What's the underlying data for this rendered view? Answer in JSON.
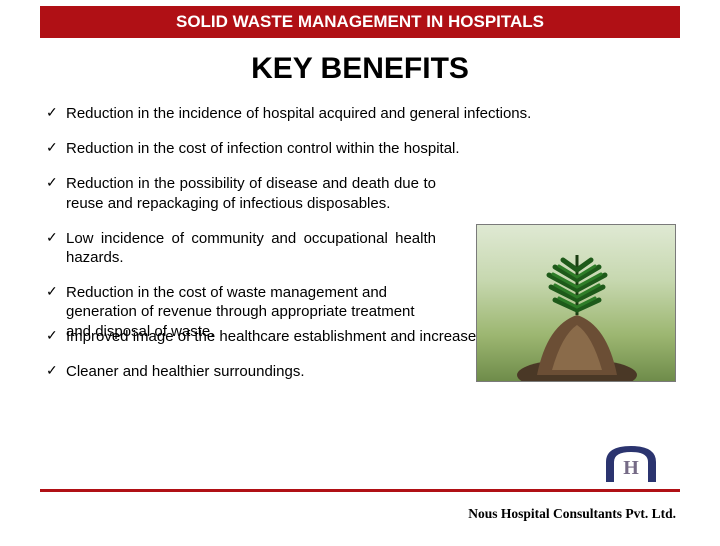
{
  "header": {
    "title": "SOLID WASTE MANAGEMENT IN HOSPITALS"
  },
  "main": {
    "title": "KEY BENEFITS",
    "bullets": [
      {
        "text": "Reduction in the incidence of hospital acquired and general infections.",
        "narrow": false,
        "justify": false
      },
      {
        "text": "Reduction in the cost of infection control within the hospital.",
        "narrow": false,
        "justify": false
      },
      {
        "text": "Reduction in the possibility of disease and death due to reuse and repackaging of infectious disposables.",
        "narrow": true,
        "justify": true
      },
      {
        "text": "Low incidence of community and occupational health hazards.",
        "narrow": true,
        "justify": true
      }
    ],
    "overlap": {
      "first": "Reduction in the cost of waste management and generation of revenue through appropriate treatment and disposal of waste.",
      "second": "Improved image of the healthcare establishment and increase the quality of life."
    },
    "last_bullet": "Cleaner and healthier surroundings."
  },
  "footer": {
    "company": "Nous Hospital Consultants Pvt. Ltd."
  },
  "colors": {
    "header_bg": "#b01015",
    "header_text": "#ffffff",
    "body_text": "#000000",
    "footer_line": "#b01015"
  },
  "check_glyph": "✓",
  "logo": {
    "letter": "H",
    "arch_color": "#2b346f",
    "letter_color": "#756a86"
  }
}
